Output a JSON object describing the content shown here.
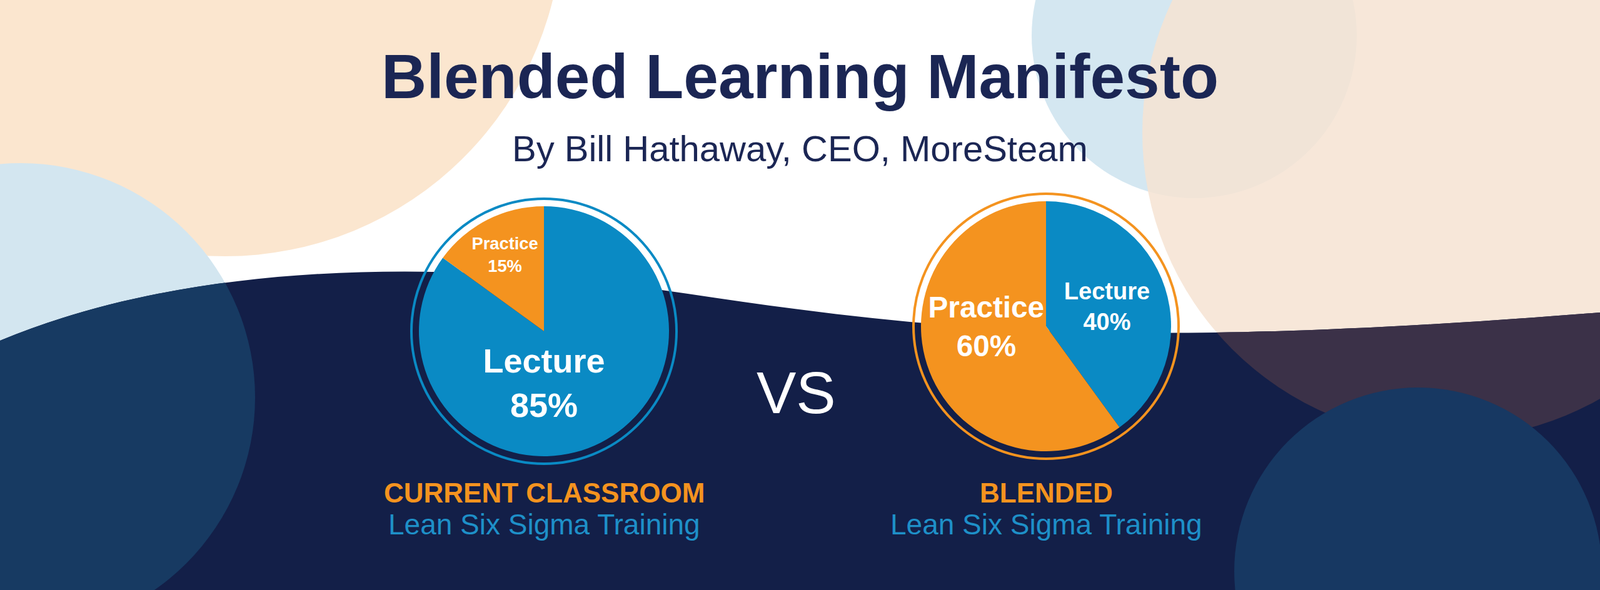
{
  "header": {
    "title": "Blended Learning Manifesto",
    "subtitle": "By Bill Hathaway, CEO, MoreSteam"
  },
  "separator": "VS",
  "chart_data": [
    {
      "type": "pie",
      "title": "CURRENT CLASSROOM",
      "subtitle": "Lean Six Sigma Training",
      "categories": [
        "Lecture",
        "Practice"
      ],
      "values": [
        85,
        15
      ],
      "value_labels": [
        "85%",
        "15%"
      ],
      "colors": [
        "#0a8ac4",
        "#f4931f"
      ],
      "data_labels": true
    },
    {
      "type": "pie",
      "title": "BLENDED",
      "subtitle": "Lean Six Sigma Training",
      "categories": [
        "Lecture",
        "Practice"
      ],
      "values": [
        40,
        60
      ],
      "value_labels": [
        "40%",
        "60%"
      ],
      "colors": [
        "#0a8ac4",
        "#f4931f"
      ],
      "data_labels": true
    }
  ]
}
